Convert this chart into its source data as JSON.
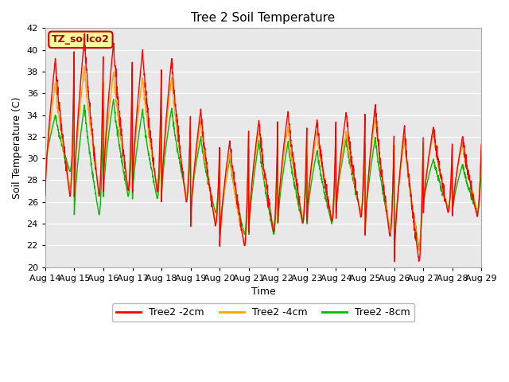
{
  "title": "Tree 2 Soil Temperature",
  "ylabel": "Soil Temperature (C)",
  "xlabel": "Time",
  "ylim": [
    20,
    42
  ],
  "xlim": [
    0,
    15
  ],
  "yticks": [
    20,
    22,
    24,
    26,
    28,
    30,
    32,
    34,
    36,
    38,
    40,
    42
  ],
  "xtick_labels": [
    "Aug 14",
    "Aug 15",
    "Aug 16",
    "Aug 17",
    "Aug 18",
    "Aug 19",
    "Aug 20",
    "Aug 21",
    "Aug 22",
    "Aug 23",
    "Aug 24",
    "Aug 25",
    "Aug 26",
    "Aug 27",
    "Aug 28",
    "Aug 29"
  ],
  "legend_label": "TZ_soilco2",
  "line_labels": [
    "Tree2 -2cm",
    "Tree2 -4cm",
    "Tree2 -8cm"
  ],
  "line_colors": [
    "#ff0000",
    "#ffa500",
    "#00bb00"
  ],
  "fig_bg": "#ffffff",
  "plot_bg": "#e8e8e8",
  "grid_color": "#ffffff",
  "legend_bg": "#ffff99",
  "legend_border": "#cc0000",
  "annotation_color": "#aa0000",
  "spine_color": "#aaaaaa",
  "day_troughs_2cm": [
    26.5,
    26.5,
    27.0,
    26.9,
    26.0,
    23.8,
    21.9,
    23.2,
    24.1,
    24.2,
    24.6,
    22.8,
    20.5,
    25.0,
    24.7
  ],
  "day_peaks_2cm": [
    39.2,
    41.2,
    40.7,
    40.0,
    39.3,
    34.6,
    31.7,
    33.6,
    34.4,
    33.6,
    34.3,
    35.0,
    33.0,
    33.0,
    32.0
  ],
  "day_troughs_4cm": [
    27.2,
    27.0,
    27.2,
    27.3,
    26.5,
    24.2,
    22.0,
    23.5,
    24.5,
    24.5,
    25.0,
    23.5,
    21.5,
    25.3,
    25.2
  ],
  "day_peaks_4cm": [
    37.0,
    38.5,
    38.0,
    37.5,
    37.5,
    33.5,
    30.5,
    32.7,
    33.0,
    32.5,
    32.5,
    34.0,
    32.0,
    32.5,
    31.5
  ],
  "day_troughs_8cm": [
    28.8,
    24.8,
    26.5,
    26.3,
    26.5,
    25.0,
    23.0,
    23.0,
    24.0,
    24.0,
    25.0,
    23.5,
    21.8,
    25.5,
    25.0
  ],
  "day_peaks_8cm": [
    34.0,
    35.0,
    35.5,
    34.5,
    34.7,
    32.0,
    30.0,
    31.6,
    31.5,
    30.8,
    31.8,
    32.0,
    32.0,
    30.0,
    29.5
  ],
  "peak_phase": 0.35,
  "trough_phase": 0.85
}
